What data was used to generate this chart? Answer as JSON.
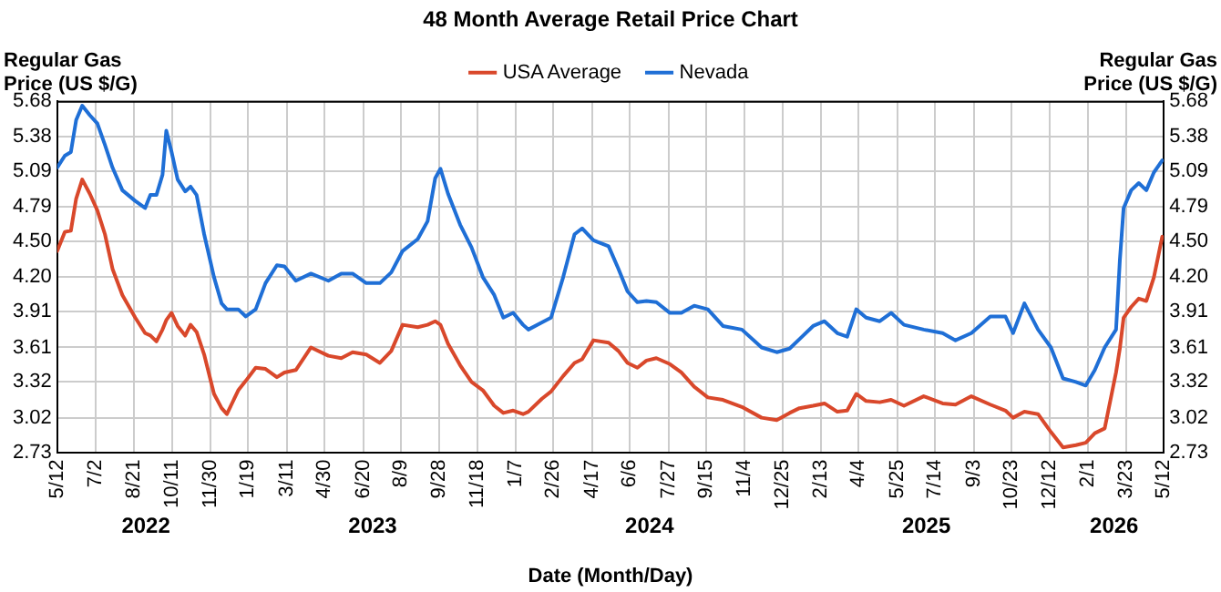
{
  "chart_data": {
    "type": "line",
    "title": "48 Month Average Retail Price Chart",
    "xlabel": "Date (Month/Day)",
    "ylabel": "Regular Gas Price (US $/G)",
    "y2label": "Regular Gas Price (US $/G)",
    "x": [
      "2022-05-12",
      "2022-05-22",
      "2022-05-30",
      "2022-06-06",
      "2022-06-14",
      "2022-06-24",
      "2022-07-04",
      "2022-07-14",
      "2022-07-24",
      "2022-08-06",
      "2022-08-23",
      "2022-09-05",
      "2022-09-12",
      "2022-09-20",
      "2022-09-28",
      "2022-10-03",
      "2022-10-10",
      "2022-10-18",
      "2022-10-28",
      "2022-11-04",
      "2022-11-12",
      "2022-11-22",
      "2022-12-05",
      "2022-12-15",
      "2022-12-22",
      "2023-01-06",
      "2023-01-16",
      "2023-01-29",
      "2023-02-11",
      "2023-02-26",
      "2023-03-08",
      "2023-03-23",
      "2023-04-12",
      "2023-05-05",
      "2023-05-22",
      "2023-06-06",
      "2023-06-24",
      "2023-07-12",
      "2023-07-27",
      "2023-08-11",
      "2023-08-31",
      "2023-09-13",
      "2023-09-23",
      "2023-09-30",
      "2023-10-10",
      "2023-10-26",
      "2023-11-10",
      "2023-11-25",
      "2023-12-10",
      "2023-12-22",
      "2024-01-04",
      "2024-01-17",
      "2024-01-24",
      "2024-02-11",
      "2024-02-23",
      "2024-03-10",
      "2024-03-25",
      "2024-04-04",
      "2024-04-19",
      "2024-05-09",
      "2024-05-22",
      "2024-06-03",
      "2024-06-16",
      "2024-06-28",
      "2024-07-11",
      "2024-07-29",
      "2024-08-13",
      "2024-08-30",
      "2024-09-17",
      "2024-10-07",
      "2024-11-01",
      "2024-11-27",
      "2024-12-17",
      "2025-01-03",
      "2025-01-16",
      "2025-02-03",
      "2025-02-18",
      "2025-03-07",
      "2025-03-20",
      "2025-04-01",
      "2025-04-14",
      "2025-05-02",
      "2025-05-17",
      "2025-06-03",
      "2025-06-29",
      "2025-07-24",
      "2025-08-10",
      "2025-08-31",
      "2025-09-25",
      "2025-10-15",
      "2025-10-25",
      "2025-11-09",
      "2025-11-27",
      "2025-12-14",
      "2025-12-30",
      "2026-01-16",
      "2026-01-29",
      "2026-02-10",
      "2026-02-23",
      "2026-03-10",
      "2026-03-15",
      "2026-03-20",
      "2026-03-30",
      "2026-04-09",
      "2026-04-19",
      "2026-04-29",
      "2026-05-10"
    ],
    "series": [
      {
        "name": "USA Average",
        "color": "#d9482b",
        "values": [
          4.42,
          4.58,
          4.59,
          4.86,
          5.02,
          4.9,
          4.76,
          4.56,
          4.27,
          4.05,
          3.86,
          3.73,
          3.71,
          3.66,
          3.76,
          3.84,
          3.9,
          3.79,
          3.71,
          3.8,
          3.74,
          3.55,
          3.22,
          3.1,
          3.05,
          3.25,
          3.33,
          3.44,
          3.43,
          3.36,
          3.4,
          3.42,
          3.61,
          3.54,
          3.52,
          3.57,
          3.55,
          3.48,
          3.58,
          3.8,
          3.78,
          3.8,
          3.83,
          3.8,
          3.64,
          3.46,
          3.32,
          3.25,
          3.12,
          3.06,
          3.08,
          3.05,
          3.07,
          3.18,
          3.24,
          3.37,
          3.48,
          3.51,
          3.67,
          3.65,
          3.58,
          3.48,
          3.44,
          3.5,
          3.52,
          3.47,
          3.4,
          3.28,
          3.19,
          3.17,
          3.11,
          3.02,
          3.0,
          3.06,
          3.1,
          3.12,
          3.14,
          3.07,
          3.08,
          3.22,
          3.16,
          3.15,
          3.17,
          3.12,
          3.2,
          3.14,
          3.13,
          3.2,
          3.13,
          3.08,
          3.02,
          3.07,
          3.05,
          2.9,
          2.77,
          2.79,
          2.81,
          2.89,
          2.93,
          3.4,
          3.6,
          3.86,
          3.95,
          4.02,
          4.0,
          4.2,
          4.54
        ]
      },
      {
        "name": "Nevada",
        "color": "#1f6fd6",
        "values": [
          5.12,
          5.22,
          5.25,
          5.52,
          5.64,
          5.56,
          5.49,
          5.31,
          5.12,
          4.93,
          4.84,
          4.78,
          4.89,
          4.89,
          5.06,
          5.43,
          5.25,
          5.02,
          4.92,
          4.96,
          4.89,
          4.56,
          4.2,
          3.98,
          3.93,
          3.93,
          3.87,
          3.93,
          4.15,
          4.3,
          4.29,
          4.17,
          4.23,
          4.17,
          4.23,
          4.23,
          4.15,
          4.15,
          4.24,
          4.42,
          4.52,
          4.67,
          5.03,
          5.11,
          4.9,
          4.64,
          4.45,
          4.2,
          4.05,
          3.86,
          3.9,
          3.8,
          3.76,
          3.82,
          3.86,
          4.2,
          4.56,
          4.61,
          4.51,
          4.46,
          4.27,
          4.08,
          3.99,
          4.0,
          3.99,
          3.9,
          3.9,
          3.96,
          3.93,
          3.79,
          3.76,
          3.61,
          3.57,
          3.6,
          3.68,
          3.79,
          3.83,
          3.73,
          3.7,
          3.93,
          3.86,
          3.83,
          3.9,
          3.8,
          3.76,
          3.73,
          3.67,
          3.73,
          3.87,
          3.87,
          3.73,
          3.98,
          3.76,
          3.61,
          3.35,
          3.32,
          3.29,
          3.42,
          3.61,
          3.76,
          4.34,
          4.78,
          4.93,
          4.99,
          4.93,
          5.08,
          5.18
        ]
      }
    ],
    "xlim": [
      "2022-05-12",
      "2026-05-12"
    ],
    "xticks": [
      {
        "value": "2022-05-12",
        "label": "5/12"
      },
      {
        "value": "2022-07-02",
        "label": "7/2"
      },
      {
        "value": "2022-08-21",
        "label": "8/21"
      },
      {
        "value": "2022-10-11",
        "label": "10/11"
      },
      {
        "value": "2022-11-30",
        "label": "11/30"
      },
      {
        "value": "2023-01-19",
        "label": "1/19"
      },
      {
        "value": "2023-03-11",
        "label": "3/11"
      },
      {
        "value": "2023-04-30",
        "label": "4/30"
      },
      {
        "value": "2023-06-20",
        "label": "6/20"
      },
      {
        "value": "2023-08-09",
        "label": "8/9"
      },
      {
        "value": "2023-09-28",
        "label": "9/28"
      },
      {
        "value": "2023-11-18",
        "label": "11/18"
      },
      {
        "value": "2024-01-07",
        "label": "1/7"
      },
      {
        "value": "2024-02-26",
        "label": "2/26"
      },
      {
        "value": "2024-04-17",
        "label": "4/17"
      },
      {
        "value": "2024-06-06",
        "label": "6/6"
      },
      {
        "value": "2024-07-27",
        "label": "7/27"
      },
      {
        "value": "2024-09-15",
        "label": "9/15"
      },
      {
        "value": "2024-11-04",
        "label": "11/4"
      },
      {
        "value": "2024-12-25",
        "label": "12/25"
      },
      {
        "value": "2025-02-13",
        "label": "2/13"
      },
      {
        "value": "2025-04-04",
        "label": "4/4"
      },
      {
        "value": "2025-05-25",
        "label": "5/25"
      },
      {
        "value": "2025-07-14",
        "label": "7/14"
      },
      {
        "value": "2025-09-03",
        "label": "9/3"
      },
      {
        "value": "2025-10-23",
        "label": "10/23"
      },
      {
        "value": "2025-12-12",
        "label": "12/12"
      },
      {
        "value": "2026-02-01",
        "label": "2/1"
      },
      {
        "value": "2026-03-23",
        "label": "3/23"
      },
      {
        "value": "2026-05-12",
        "label": "5/12"
      }
    ],
    "ylim": [
      2.73,
      5.68
    ],
    "yticks": [
      2.73,
      3.02,
      3.32,
      3.61,
      3.91,
      {
        "value": 4.2,
        "label": "4.20"
      },
      {
        "value": 4.5,
        "label": "4.50"
      },
      4.79,
      5.09,
      5.38,
      5.68
    ],
    "y2lim": [
      2.73,
      5.68
    ],
    "y2ticks": [
      2.73,
      3.02,
      3.32,
      3.61,
      3.91,
      {
        "value": 4.2,
        "label": "4.20"
      },
      {
        "value": 4.5,
        "label": "4.50"
      },
      4.79,
      5.09,
      5.38,
      5.68
    ],
    "annotations": [
      "2022",
      "2023",
      "2024",
      "2025",
      "2026"
    ],
    "grid": true,
    "legend": "top",
    "marker": "none",
    "line_style": "solid"
  }
}
